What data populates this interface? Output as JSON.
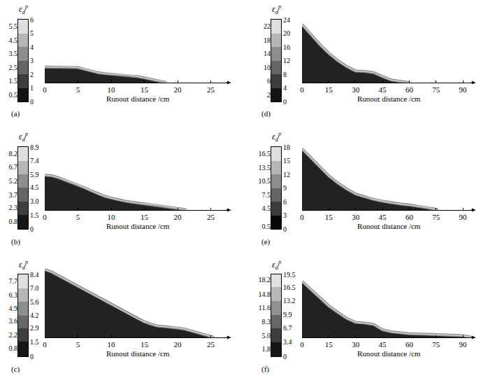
{
  "chart_data": [
    {
      "type": "area",
      "panel": "(a)",
      "x_label": "Runout distance /cm",
      "tick_labels": "x",
      "xlim": [
        0,
        28
      ],
      "xticks": [
        0,
        5,
        10,
        15,
        20,
        25
      ],
      "ylim": [
        0,
        12
      ],
      "x": [
        0,
        2,
        4,
        5,
        6,
        7,
        8,
        9,
        10,
        11,
        12,
        13,
        14,
        15,
        16,
        17,
        18,
        18.3
      ],
      "values": [
        2.6,
        2.6,
        2.6,
        2.5,
        2.2,
        1.9,
        1.65,
        1.5,
        1.4,
        1.35,
        1.3,
        1.2,
        1.0,
        0.8,
        0.55,
        0.35,
        0.1,
        0
      ],
      "colorbar": {
        "title": {
          "symbol": "ε",
          "subscript": "d",
          "superscript": "p"
        },
        "range": [
          0,
          6
        ],
        "ticks": [
          0,
          1,
          2,
          3,
          4,
          5,
          6
        ],
        "levels": [
          0.5,
          1.5,
          2.5,
          3.5,
          4.5,
          5.5
        ]
      }
    },
    {
      "type": "area",
      "panel": "(b)",
      "x_label": "Runout distance /cm",
      "tick_labels": "x",
      "xlim": [
        0,
        28
      ],
      "xticks": [
        0,
        5,
        10,
        15,
        20,
        25
      ],
      "ylim": [
        0,
        12
      ],
      "x": [
        0,
        1,
        2,
        3,
        4,
        5,
        6,
        7,
        8,
        9,
        10,
        11,
        12,
        13,
        14,
        15,
        16,
        17,
        18,
        19,
        20,
        21,
        21.3
      ],
      "values": [
        5.8,
        5.7,
        5.4,
        5.0,
        4.6,
        4.2,
        3.7,
        3.2,
        2.7,
        2.3,
        2.0,
        1.7,
        1.5,
        1.3,
        1.15,
        1.05,
        0.95,
        0.8,
        0.65,
        0.5,
        0.3,
        0.1,
        0
      ],
      "colorbar": {
        "title": {
          "symbol": "ε",
          "subscript": "d",
          "superscript": "p"
        },
        "range": [
          0,
          8.9
        ],
        "ticks": [
          0,
          1.5,
          {
            "value": 3,
            "label": "3.0"
          },
          4.5,
          5.9,
          7.4,
          8.9
        ],
        "levels": [
          0.8,
          2.3,
          3.7,
          5.2,
          6.7,
          8.2
        ]
      }
    },
    {
      "type": "area",
      "panel": "(c)",
      "x_label": "Runout distance /cm",
      "tick_labels": "x",
      "xlim": [
        0,
        28
      ],
      "xticks": [
        0,
        5,
        10,
        15,
        20,
        25
      ],
      "ylim": [
        0,
        12
      ],
      "x": [
        0,
        1,
        2,
        3,
        4,
        5,
        6,
        7,
        8,
        9,
        10,
        11,
        12,
        13,
        14,
        15,
        16,
        17,
        18,
        19,
        20,
        21,
        22,
        23,
        24,
        25,
        25.5
      ],
      "values": [
        11.3,
        10.9,
        10.3,
        9.7,
        9.1,
        8.5,
        7.9,
        7.3,
        6.7,
        6.1,
        5.5,
        4.9,
        4.3,
        3.7,
        3.1,
        2.6,
        2.2,
        1.9,
        1.8,
        1.7,
        1.6,
        1.4,
        1.1,
        0.8,
        0.5,
        0.2,
        0
      ],
      "colorbar": {
        "title": {
          "symbol": "ε",
          "subscript": "d",
          "superscript": "p"
        },
        "range": [
          0,
          8.4
        ],
        "ticks": [
          0,
          1.5,
          2.9,
          4.2,
          5.6,
          {
            "value": 7,
            "label": "7.0"
          },
          8.4
        ],
        "levels": [
          0.8,
          2.2,
          3.6,
          4.9,
          6.3,
          7.7
        ]
      }
    },
    {
      "type": "area",
      "panel": "(d)",
      "x_label": "Runout distance /cm",
      "tick_labels": "x",
      "xlim": [
        0,
        97
      ],
      "xticks": [
        0,
        15,
        30,
        45,
        60,
        75,
        90
      ],
      "ylim": [
        0,
        36
      ],
      "x": [
        0,
        5,
        10,
        15,
        20,
        25,
        30,
        35,
        40,
        45,
        50,
        55,
        60
      ],
      "values": [
        29,
        24,
        19,
        14.6,
        11,
        8,
        5.8,
        5.6,
        5,
        3,
        1.3,
        0.6,
        0
      ],
      "colorbar": {
        "title": {
          "symbol": "ε",
          "subscript": "d",
          "superscript": "p"
        },
        "range": [
          0,
          24
        ],
        "ticks": [
          0,
          4,
          8,
          12,
          16,
          20,
          24
        ],
        "levels": [
          2,
          6,
          10,
          14,
          18,
          22
        ]
      }
    },
    {
      "type": "area",
      "panel": "(e)",
      "x_label": "Runout distance /cm",
      "tick_labels": "x",
      "xlim": [
        0,
        97
      ],
      "xticks": [
        0,
        15,
        30,
        45,
        60,
        75,
        90
      ],
      "ylim": [
        0,
        36
      ],
      "x": [
        0,
        5,
        10,
        15,
        20,
        25,
        30,
        35,
        40,
        45,
        50,
        55,
        60,
        65,
        70,
        75,
        76
      ],
      "values": [
        30.5,
        26,
        21.5,
        17,
        13.5,
        10.5,
        8,
        6.5,
        5.3,
        4.4,
        3.6,
        3,
        2.5,
        1.9,
        1.2,
        0.4,
        0
      ],
      "colorbar": {
        "title": {
          "symbol": "ε",
          "subscript": "d",
          "superscript": "p"
        },
        "range": [
          0,
          18
        ],
        "ticks": [
          0,
          3,
          6,
          9,
          12,
          15,
          18
        ],
        "levels": [
          0.5,
          4.5,
          7.5,
          10.5,
          13.5,
          16.5
        ]
      }
    },
    {
      "type": "area",
      "panel": "(f)",
      "x_label": "Runout distance /cm",
      "tick_labels": "x",
      "xlim": [
        0,
        97
      ],
      "xticks": [
        0,
        15,
        30,
        45,
        60,
        75,
        90
      ],
      "ylim": [
        0,
        36
      ],
      "x": [
        0,
        5,
        10,
        15,
        20,
        25,
        30,
        35,
        40,
        45,
        50,
        55,
        60,
        70,
        80,
        90,
        95
      ],
      "values": [
        28,
        24,
        20,
        15.7,
        12.5,
        9.5,
        7.5,
        7.2,
        6.5,
        3.8,
        2.8,
        2.2,
        1.8,
        1.6,
        1.3,
        0.9,
        0
      ],
      "colorbar": {
        "title": {
          "symbol": "ε",
          "subscript": "d",
          "superscript": "p"
        },
        "range": [
          0,
          19.5
        ],
        "ticks": [
          0,
          3.4,
          6.7,
          9.9,
          13.2,
          16.5,
          19.5
        ],
        "levels": [
          1.8,
          {
            "value": 5,
            "label": "5.0"
          },
          8.3,
          11.6,
          14.8,
          18.2
        ]
      }
    }
  ]
}
